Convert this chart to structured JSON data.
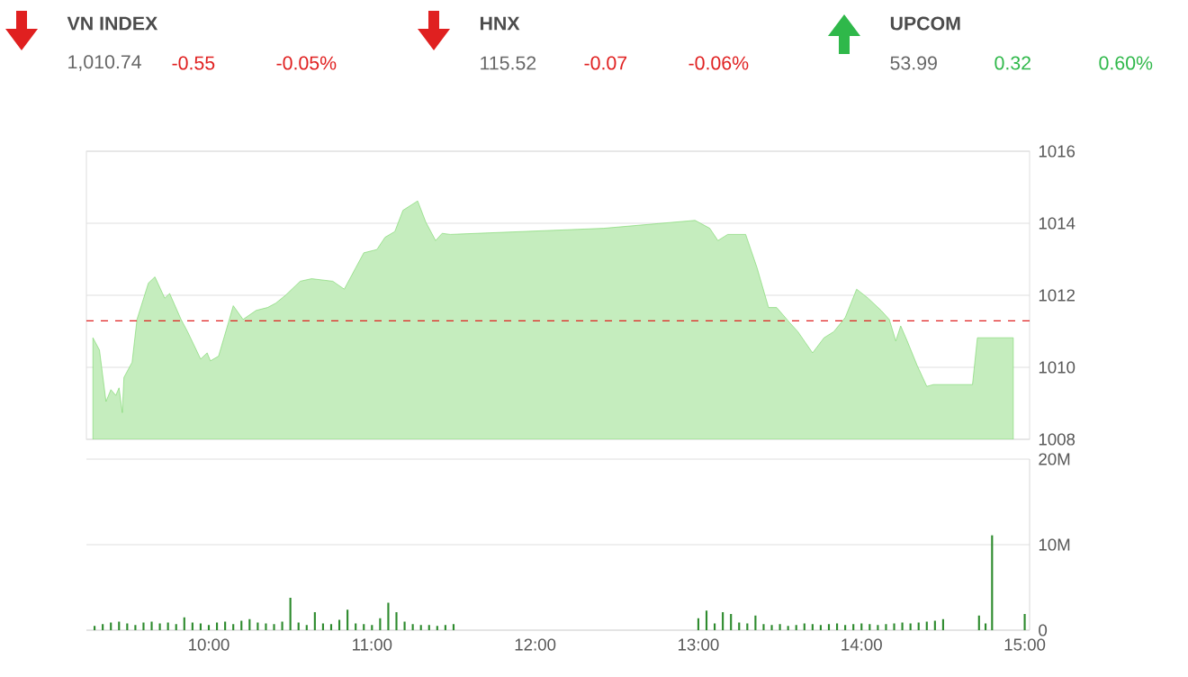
{
  "chart_data": [
    {
      "type": "other",
      "title": "VN INDEX",
      "values": [
        1010.74,
        -0.55,
        -0.05
      ],
      "value_labels": [
        "1,010.74",
        "-0.55",
        "-0.05%"
      ],
      "color": "#e02020"
    },
    {
      "type": "other",
      "title": "HNX",
      "values": [
        115.52,
        -0.07,
        -0.06
      ],
      "value_labels": [
        "115.52",
        "-0.07",
        "-0.06%"
      ],
      "color": "#e02020"
    },
    {
      "type": "other",
      "title": "UPCOM",
      "values": [
        53.99,
        0.32,
        0.6
      ],
      "value_labels": [
        "53.99",
        "0.32",
        "0.60%"
      ],
      "color": "#2fb84a"
    },
    {
      "type": "area",
      "color": "#7fd86f",
      "grid": "y",
      "tick_labels": "y",
      "xlim": [
        9.25,
        15.03
      ],
      "ylim": [
        1008,
        1016
      ],
      "yticks": [
        1008,
        1010,
        1012,
        1014,
        1016
      ],
      "x": [
        9.29,
        9.33,
        9.37,
        9.4,
        9.43,
        9.45,
        9.47,
        9.48,
        9.53,
        9.56,
        9.63,
        9.67,
        9.73,
        9.76,
        9.83,
        9.87,
        9.95,
        9.99,
        10.01,
        10.06,
        10.12,
        10.15,
        10.21,
        10.29,
        10.36,
        10.41,
        10.47,
        10.56,
        10.63,
        10.76,
        10.83,
        10.9,
        10.95,
        11.03,
        11.08,
        11.14,
        11.19,
        11.28,
        11.33,
        11.39,
        11.43,
        11.48,
        12.42,
        12.98,
        13.07,
        13.12,
        13.18,
        13.23,
        13.29,
        13.36,
        13.43,
        13.48,
        13.56,
        13.61,
        13.7,
        13.77,
        13.83,
        13.9,
        13.97,
        14.04,
        14.12,
        14.17,
        14.21,
        14.24,
        14.28,
        14.34,
        14.4,
        14.44,
        14.68,
        14.71,
        14.93
      ],
      "values": [
        1010.82,
        1010.48,
        1009.05,
        1009.38,
        1009.22,
        1009.43,
        1008.74,
        1009.72,
        1010.14,
        1011.33,
        1012.34,
        1012.51,
        1011.92,
        1012.05,
        1011.33,
        1010.99,
        1010.23,
        1010.4,
        1010.18,
        1010.31,
        1011.24,
        1011.71,
        1011.33,
        1011.58,
        1011.66,
        1011.78,
        1012.0,
        1012.39,
        1012.46,
        1012.39,
        1012.17,
        1012.76,
        1013.18,
        1013.27,
        1013.61,
        1013.77,
        1014.36,
        1014.62,
        1014.03,
        1013.52,
        1013.72,
        1013.69,
        1013.86,
        1014.08,
        1013.86,
        1013.52,
        1013.69,
        1013.69,
        1013.69,
        1012.76,
        1011.66,
        1011.66,
        1011.24,
        1010.99,
        1010.4,
        1010.82,
        1010.99,
        1011.38,
        1012.17,
        1011.92,
        1011.58,
        1011.33,
        1010.73,
        1011.15,
        1010.73,
        1010.06,
        1009.47,
        1009.52,
        1009.52,
        1010.82,
        1010.82
      ],
      "ref_lines": [
        {
          "axis": "y",
          "value": 1011.29,
          "color": "#e02020",
          "line_style": "dashed"
        }
      ]
    },
    {
      "type": "bar",
      "color": "#2e8b2e",
      "grid": "y",
      "xlim": [
        9.25,
        15.03
      ],
      "ylim": [
        0,
        20000000
      ],
      "xticks": [
        {
          "value": 10,
          "label": "10:00"
        },
        {
          "value": 11,
          "label": "11:00"
        },
        {
          "value": 12,
          "label": "12:00"
        },
        {
          "value": 13,
          "label": "13:00"
        },
        {
          "value": 14,
          "label": "14:00"
        },
        {
          "value": 15,
          "label": "15:00"
        }
      ],
      "yticks": [
        0,
        {
          "value": 10000000,
          "label": "10M"
        },
        {
          "value": 20000000,
          "label": "20M"
        }
      ],
      "x": [
        9.3,
        9.35,
        9.4,
        9.45,
        9.5,
        9.55,
        9.6,
        9.65,
        9.7,
        9.75,
        9.8,
        9.85,
        9.9,
        9.95,
        10.0,
        10.05,
        10.1,
        10.15,
        10.2,
        10.25,
        10.3,
        10.35,
        10.4,
        10.45,
        10.5,
        10.55,
        10.6,
        10.65,
        10.7,
        10.75,
        10.8,
        10.85,
        10.9,
        10.95,
        11.0,
        11.05,
        11.1,
        11.15,
        11.2,
        11.25,
        11.3,
        11.35,
        11.4,
        11.45,
        11.5,
        13.0,
        13.05,
        13.1,
        13.15,
        13.2,
        13.25,
        13.3,
        13.35,
        13.4,
        13.45,
        13.5,
        13.55,
        13.6,
        13.65,
        13.7,
        13.75,
        13.8,
        13.85,
        13.9,
        13.95,
        14.0,
        14.05,
        14.1,
        14.15,
        14.2,
        14.25,
        14.3,
        14.35,
        14.4,
        14.45,
        14.5,
        14.72,
        14.76,
        14.8,
        14.87,
        14.93,
        15.0
      ],
      "values": [
        500000,
        700000,
        900000,
        1000000,
        800000,
        600000,
        900000,
        1000000,
        800000,
        900000,
        700000,
        1500000,
        900000,
        800000,
        600000,
        900000,
        1000000,
        700000,
        1100000,
        1300000,
        900000,
        800000,
        700000,
        1000000,
        3800000,
        900000,
        600000,
        2100000,
        800000,
        700000,
        1200000,
        2400000,
        800000,
        700000,
        600000,
        1400000,
        3200000,
        2100000,
        1000000,
        700000,
        600000,
        600000,
        500000,
        600000,
        700000,
        1400000,
        2300000,
        800000,
        2100000,
        1900000,
        900000,
        800000,
        1700000,
        700000,
        600000,
        700000,
        500000,
        600000,
        800000,
        700000,
        600000,
        700000,
        800000,
        600000,
        700000,
        800000,
        700000,
        600000,
        700000,
        800000,
        900000,
        800000,
        900000,
        1000000,
        1100000,
        1300000,
        1700000,
        800000,
        11100000,
        null,
        null,
        1900000
      ]
    }
  ]
}
